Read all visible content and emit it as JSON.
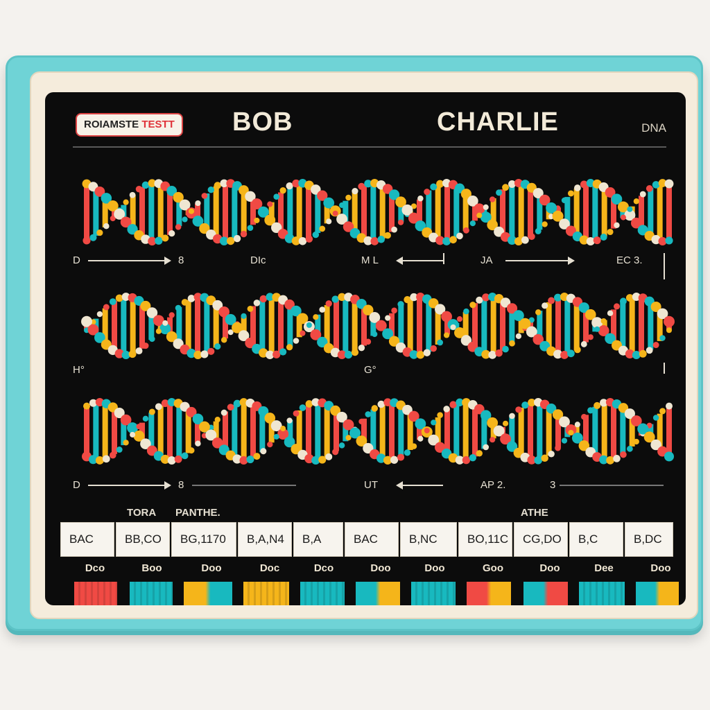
{
  "header": {
    "badge_main": "ROIAMSTE",
    "badge_accent": "TESTT",
    "name_left": "BOB",
    "name_right": "CHARLIE",
    "tag": "DNA"
  },
  "rows": [
    {
      "labels": [
        {
          "id": "r1-a",
          "text": "D"
        },
        {
          "id": "r1-b",
          "text": "8"
        },
        {
          "id": "r1-c",
          "text": "DIc"
        },
        {
          "id": "r1-d",
          "text": "M L"
        },
        {
          "id": "r1-e",
          "text": "JA"
        },
        {
          "id": "r1-f",
          "text": "EC 3."
        }
      ]
    },
    {
      "labels": [
        {
          "id": "r2-a",
          "text": "H°"
        },
        {
          "id": "r2-b",
          "text": "G°"
        }
      ]
    },
    {
      "labels": [
        {
          "id": "r3-a",
          "text": "D"
        },
        {
          "id": "r3-b",
          "text": "8"
        },
        {
          "id": "r3-c",
          "text": "UT"
        },
        {
          "id": "r3-d",
          "text": "AP 2."
        },
        {
          "id": "r3-e",
          "text": "3"
        }
      ]
    }
  ],
  "table": {
    "headers": [
      "TORA",
      "PANTHE.",
      "ATHE"
    ],
    "cells": [
      "BAC",
      "BB,CO",
      "BG,1170",
      "B,A,N4",
      "B,A",
      "BAC",
      "B,NC",
      "BO,11C",
      "CG,DO",
      "B,C",
      "B,DC"
    ]
  },
  "doo_labels": [
    "Dco",
    "Boo",
    "Doo",
    "Doc",
    "Dco",
    "Doo",
    "Doo",
    "Goo",
    "Doo",
    "Dee",
    "Doo"
  ],
  "colors": {
    "red": "#f04a44",
    "cyan": "#18b9bf",
    "yellow": "#f5b51a",
    "cream": "#efe6d2",
    "frame": "#6fd3d6"
  },
  "swatches": [
    [
      "#f04a44",
      "#f04a44"
    ],
    [
      "#18b9bf",
      "#18b9bf"
    ],
    [
      "#f5b51a",
      "#18b9bf"
    ],
    [
      "#f5b51a",
      "#f5b51a"
    ],
    [
      "#18b9bf",
      "#18b9bf"
    ],
    [
      "#18b9bf",
      "#f5b51a"
    ],
    [
      "#18b9bf",
      "#18b9bf"
    ],
    [
      "#f04a44",
      "#f5b51a"
    ],
    [
      "#18b9bf",
      "#f04a44"
    ],
    [
      "#18b9bf",
      "#18b9bf"
    ],
    [
      "#18b9bf",
      "#f5b51a"
    ]
  ]
}
